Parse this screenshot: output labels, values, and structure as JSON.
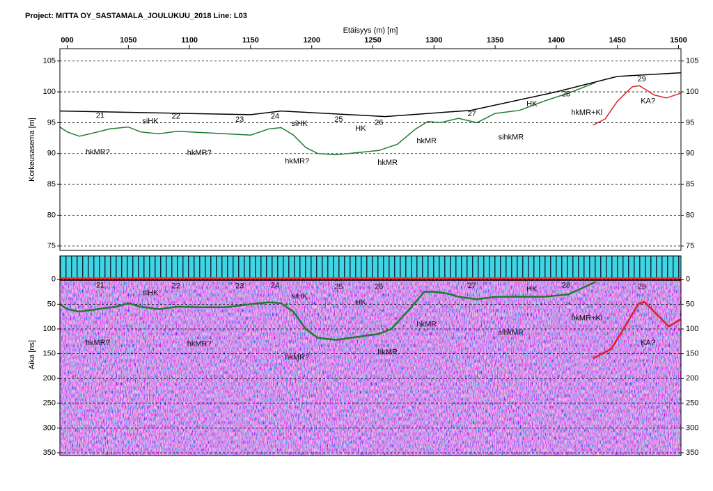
{
  "chart_data": [
    {
      "type": "line",
      "title": "Project: MITTA OY_SASTAMALA_JOULUKUU_2018  Line: L03",
      "x_label": "Etäisyys (m) [m]",
      "y_label": "Korkeusasema [m]",
      "xlim": [
        994,
        1502
      ],
      "xticks": [
        {
          "value": 1000,
          "label": "000"
        },
        1050,
        1100,
        1150,
        1200,
        1250,
        1300,
        1350,
        1400,
        1450,
        1500
      ],
      "ylim": [
        74.3,
        107
      ],
      "yticks": [
        75,
        80,
        85,
        90,
        95,
        100,
        105
      ],
      "grid": true,
      "series": [
        {
          "color": "#000000",
          "x": [
            994,
            1150,
            1175,
            1260,
            1330,
            1400,
            1450,
            1502
          ],
          "values": [
            96.9,
            96.3,
            96.9,
            96.0,
            97.0,
            100.0,
            102.5,
            103.1
          ]
        },
        {
          "color": "#1e7a2e",
          "x": [
            994,
            1000,
            1010,
            1025,
            1035,
            1050,
            1060,
            1075,
            1090,
            1110,
            1130,
            1150,
            1165,
            1175,
            1185,
            1195,
            1205,
            1220,
            1240,
            1255,
            1270,
            1285,
            1295,
            1305,
            1320,
            1335,
            1350,
            1370,
            1390,
            1410,
            1432
          ],
          "values": [
            94.3,
            93.5,
            92.8,
            93.5,
            94.0,
            94.3,
            93.5,
            93.2,
            93.6,
            93.4,
            93.2,
            93.0,
            94.0,
            94.2,
            93.0,
            91.0,
            90.0,
            89.8,
            90.2,
            90.5,
            91.5,
            94.0,
            95.2,
            95.0,
            95.7,
            95.0,
            96.5,
            97.0,
            98.5,
            99.8,
            101.5
          ]
        },
        {
          "color": "#e02020",
          "x": [
            1430,
            1440,
            1450,
            1462,
            1468,
            1480,
            1490,
            1502
          ],
          "values": [
            94.6,
            95.6,
            98.5,
            100.8,
            101.0,
            99.5,
            99.0,
            99.8
          ]
        }
      ],
      "annotations": [
        {
          "text": "21",
          "x": 1027,
          "y": 96.1
        },
        {
          "text": "siHK",
          "x": 1068,
          "y": 95.2
        },
        {
          "text": "22",
          "x": 1089,
          "y": 96.0
        },
        {
          "text": "23",
          "x": 1141,
          "y": 95.5
        },
        {
          "text": "24",
          "x": 1170,
          "y": 96.0
        },
        {
          "text": "siHK",
          "x": 1190,
          "y": 94.8
        },
        {
          "text": "25",
          "x": 1222,
          "y": 95.5
        },
        {
          "text": "HK",
          "x": 1240,
          "y": 94.0
        },
        {
          "text": "26",
          "x": 1255,
          "y": 95.0
        },
        {
          "text": "27",
          "x": 1331,
          "y": 96.4
        },
        {
          "text": "HK",
          "x": 1380,
          "y": 98.0
        },
        {
          "text": "28",
          "x": 1408,
          "y": 99.6
        },
        {
          "text": "hkMR+Kl",
          "x": 1425,
          "y": 96.6
        },
        {
          "text": "29",
          "x": 1470,
          "y": 102.0
        },
        {
          "text": "KA?",
          "x": 1475,
          "y": 98.5
        },
        {
          "text": "hkMR?",
          "x": 1025,
          "y": 90.2
        },
        {
          "text": "hkMR?",
          "x": 1108,
          "y": 90.1
        },
        {
          "text": "hkMR?",
          "x": 1188,
          "y": 88.7
        },
        {
          "text": "hkMR",
          "x": 1262,
          "y": 88.5
        },
        {
          "text": "hkMR",
          "x": 1294,
          "y": 92.0
        },
        {
          "text": "sihkMR",
          "x": 1363,
          "y": 92.6
        }
      ]
    },
    {
      "type": "radargram",
      "y_label": "Aika [ns]",
      "xlim": [
        994,
        1502
      ],
      "ylim": [
        355.6,
        -47.5
      ],
      "yticks": [
        0,
        50,
        100,
        150,
        200,
        250,
        300,
        350
      ],
      "grid": true,
      "series": [
        {
          "color": "#1e7a2e",
          "x": [
            994,
            1000,
            1010,
            1025,
            1040,
            1050,
            1060,
            1075,
            1090,
            1110,
            1130,
            1150,
            1165,
            1175,
            1185,
            1195,
            1205,
            1220,
            1240,
            1255,
            1265,
            1280,
            1292,
            1300,
            1310,
            1320,
            1335,
            1350,
            1370,
            1390,
            1410,
            1432
          ],
          "values": [
            50,
            60,
            65,
            60,
            55,
            48,
            55,
            60,
            55,
            56,
            56,
            50,
            46,
            48,
            65,
            100,
            118,
            122,
            115,
            110,
            100,
            60,
            25,
            25,
            28,
            35,
            40,
            35,
            35,
            35,
            30,
            5
          ]
        },
        {
          "color": "#e02020",
          "x": [
            1430,
            1445,
            1455,
            1467,
            1472,
            1480,
            1492,
            1502
          ],
          "values": [
            160,
            140,
            100,
            50,
            45,
            65,
            95,
            80
          ]
        }
      ],
      "annotations": [
        {
          "text": "21",
          "x": 1027,
          "y": 12
        },
        {
          "text": "siHK",
          "x": 1068,
          "y": 28
        },
        {
          "text": "22",
          "x": 1089,
          "y": 14
        },
        {
          "text": "23",
          "x": 1141,
          "y": 14
        },
        {
          "text": "24",
          "x": 1170,
          "y": 12
        },
        {
          "text": "siHK",
          "x": 1190,
          "y": 35
        },
        {
          "text": "25",
          "x": 1222,
          "y": 15
        },
        {
          "text": "HK",
          "x": 1240,
          "y": 47
        },
        {
          "text": "26",
          "x": 1255,
          "y": 15
        },
        {
          "text": "27",
          "x": 1331,
          "y": 13
        },
        {
          "text": "HK",
          "x": 1380,
          "y": 20
        },
        {
          "text": "28",
          "x": 1408,
          "y": 12
        },
        {
          "text": "hkMR+Kl",
          "x": 1425,
          "y": 78
        },
        {
          "text": "29",
          "x": 1470,
          "y": 15
        },
        {
          "text": "KA?",
          "x": 1475,
          "y": 128
        },
        {
          "text": "hkMR?",
          "x": 1025,
          "y": 128
        },
        {
          "text": "hkMR?",
          "x": 1108,
          "y": 130
        },
        {
          "text": "hkMR?",
          "x": 1188,
          "y": 158
        },
        {
          "text": "hkMR",
          "x": 1262,
          "y": 147
        },
        {
          "text": "hkMR",
          "x": 1294,
          "y": 91
        },
        {
          "text": "sihkMR",
          "x": 1363,
          "y": 108
        }
      ]
    }
  ]
}
